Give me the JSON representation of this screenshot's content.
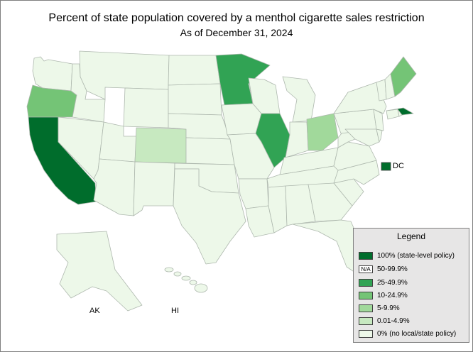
{
  "title": "Percent of state population covered by a menthol cigarette sales restriction",
  "subtitle": "As of December 31, 2024",
  "colors": {
    "full": "#006d2c",
    "c25": "#31a354",
    "c10": "#74c476",
    "c5": "#a1d99b",
    "c001": "#c7e9c0",
    "zero": "#edf8e9",
    "border": "#aeb8ae"
  },
  "legend": {
    "title": "Legend",
    "items": [
      {
        "label": "100% (state-level policy)",
        "color": "#006d2c"
      },
      {
        "label": "50-99.9%",
        "color": "na",
        "badge": "N/A"
      },
      {
        "label": "25-49.9%",
        "color": "#31a354"
      },
      {
        "label": "10-24.9%",
        "color": "#74c476"
      },
      {
        "label": "5-9.9%",
        "color": "#a1d99b"
      },
      {
        "label": "0.01-4.9%",
        "color": "#c7e9c0"
      },
      {
        "label": "0% (no local/state policy)",
        "color": "#edf8e9"
      }
    ]
  },
  "map_labels": {
    "dc": "DC",
    "ak": "AK",
    "hi": "HI"
  },
  "map_data": {
    "state_categories": {
      "CA": "100% (state-level policy)",
      "MA": "100% (state-level policy)",
      "DC": "100% (state-level policy)",
      "MN": "25-49.9%",
      "IL": "25-49.9%",
      "OR": "10-24.9%",
      "ME": "10-24.9%",
      "OH": "5-9.9%",
      "CO": "0.01-4.9%",
      "all_other_states": "0% (no local/state policy)"
    }
  }
}
